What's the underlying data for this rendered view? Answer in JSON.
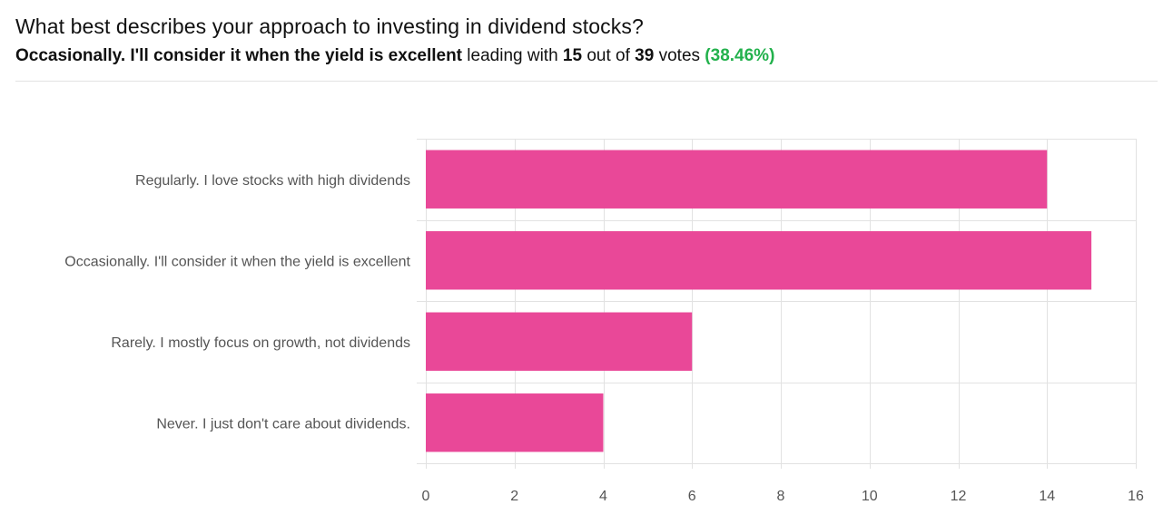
{
  "question": "What best describes your approach to investing in dividend stocks?",
  "summary": {
    "leader": "Occasionally. I'll consider it when the yield is excellent",
    "leading_with": "leading with",
    "leader_votes": "15",
    "out_of": "out of",
    "total_votes": "39",
    "votes_word": "votes",
    "percent": "(38.46%)"
  },
  "colors": {
    "bar": "#e94898",
    "grid": "#e2e2e2",
    "accent": "#22b14c"
  },
  "chart_data": {
    "type": "bar",
    "orientation": "horizontal",
    "categories": [
      "Regularly. I love stocks with high dividends",
      "Occasionally. I'll consider it when the yield is excellent",
      "Rarely. I mostly focus on growth, not dividends",
      "Never. I just don't care about dividends."
    ],
    "values": [
      14,
      15,
      6,
      4
    ],
    "xlim": [
      0,
      16
    ],
    "xticks": [
      0,
      2,
      4,
      6,
      8,
      10,
      12,
      14,
      16
    ],
    "grid": true,
    "legend": "none"
  }
}
